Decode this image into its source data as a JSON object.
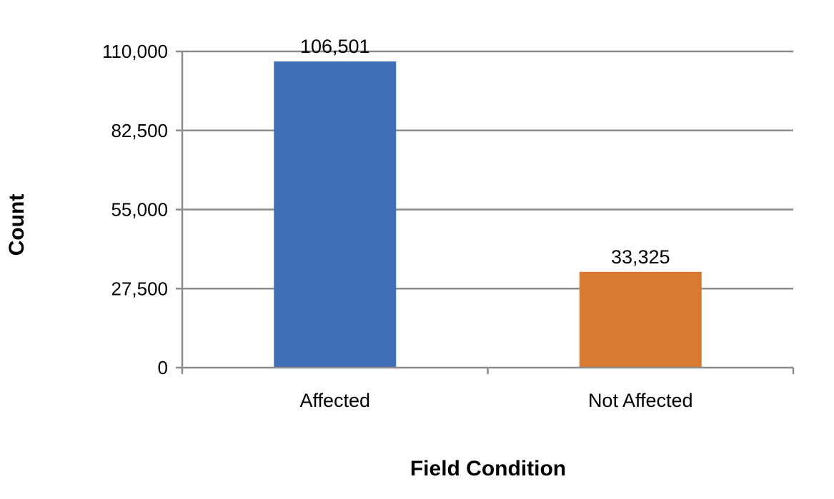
{
  "chart_data": {
    "type": "bar",
    "categories": [
      "Affected",
      "Not Affected"
    ],
    "values": [
      106501,
      33325
    ],
    "data_labels": [
      "106,501",
      "33,325"
    ],
    "colors": [
      "#4170b8",
      "#d87a31"
    ],
    "xlabel": "Field Condition",
    "ylabel": "Count",
    "ylim": [
      0,
      110000
    ],
    "yticks": [
      0,
      27500,
      55000,
      82500,
      110000
    ],
    "ytick_labels": [
      "0",
      "27,500",
      "55,000",
      "82,500",
      "110,000"
    ],
    "grid": true,
    "legend": "none"
  }
}
